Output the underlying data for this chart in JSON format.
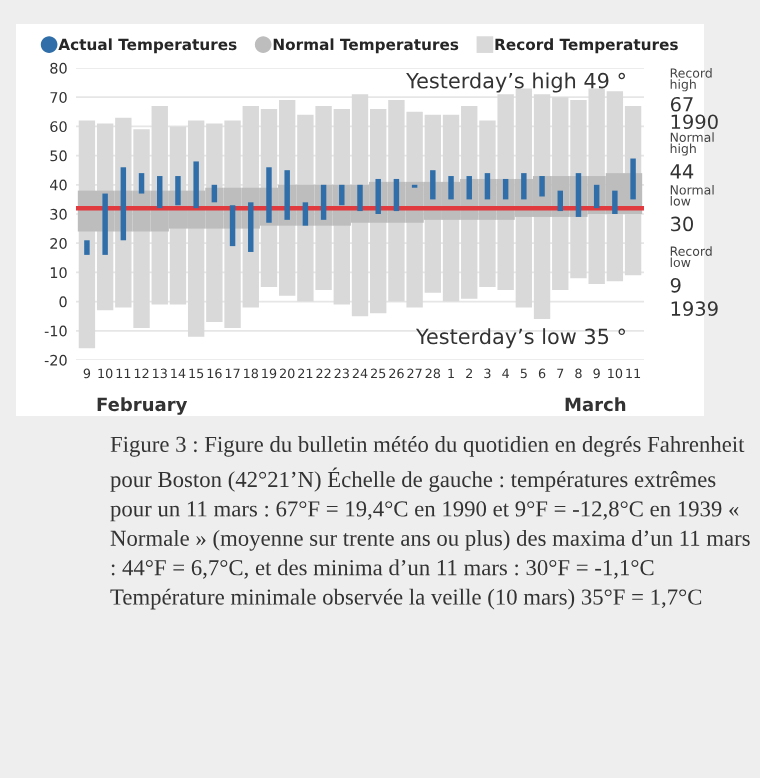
{
  "chart_data": {
    "type": "bar",
    "categories": [
      "9",
      "10",
      "11",
      "12",
      "13",
      "14",
      "15",
      "16",
      "17",
      "18",
      "19",
      "20",
      "21",
      "22",
      "23",
      "24",
      "25",
      "26",
      "27",
      "28",
      "1",
      "2",
      "3",
      "4",
      "5",
      "6",
      "7",
      "8",
      "9",
      "10",
      "11"
    ],
    "series": [
      {
        "name": "Record Temperatures",
        "color": "#d9d9d9",
        "base": [
          -16,
          -3,
          -2,
          -9,
          -1,
          -1,
          -12,
          -7,
          -9,
          -2,
          5,
          2,
          0,
          4,
          -1,
          -5,
          -4,
          0,
          -2,
          3,
          0,
          1,
          5,
          4,
          -2,
          -6,
          4,
          8,
          6,
          7,
          9
        ],
        "values": [
          78,
          64,
          65,
          68,
          68,
          61,
          74,
          68,
          71,
          69,
          61,
          67,
          64,
          63,
          67,
          76,
          70,
          69,
          67,
          61,
          64,
          66,
          57,
          67,
          75,
          77,
          66,
          61,
          67,
          65,
          58
        ]
      },
      {
        "name": "Normal Temperatures",
        "color": "#bdbdbd",
        "base": [
          24,
          24,
          24,
          24,
          24,
          25,
          25,
          25,
          25,
          25,
          26,
          26,
          26,
          26,
          26,
          27,
          27,
          27,
          27,
          28,
          28,
          28,
          28,
          28,
          29,
          29,
          29,
          29,
          30,
          30,
          30
        ],
        "values": [
          14,
          14,
          14,
          14,
          14,
          13,
          13,
          14,
          14,
          14,
          13,
          14,
          14,
          14,
          14,
          13,
          14,
          14,
          14,
          13,
          13,
          14,
          14,
          14,
          13,
          14,
          14,
          14,
          13,
          14,
          14
        ]
      },
      {
        "name": "Actual Temperatures",
        "color": "#2f6ea8",
        "base": [
          16,
          16,
          21,
          37,
          32,
          33,
          32,
          34,
          19,
          17,
          27,
          28,
          26,
          28,
          33,
          31,
          30,
          31,
          39,
          35,
          35,
          35,
          35,
          35,
          35,
          36,
          31,
          29,
          32,
          30,
          35
        ],
        "values": [
          5,
          21,
          25,
          7,
          11,
          10,
          16,
          6,
          14,
          17,
          19,
          17,
          8,
          12,
          7,
          9,
          12,
          11,
          1,
          10,
          8,
          8,
          9,
          7,
          9,
          7,
          7,
          15,
          8,
          8,
          14
        ]
      }
    ],
    "ylim": [
      -20,
      80
    ],
    "yticks": [
      -20,
      -10,
      0,
      10,
      20,
      30,
      40,
      50,
      60,
      70,
      80
    ],
    "grid": "y",
    "legend": "top",
    "ref_lines": [
      {
        "axis": "y",
        "value": 32,
        "color": "#e0393e"
      }
    ],
    "annotations": [
      "Yesterday’s high 49 °",
      "Yesterday’s low 35 °",
      "Record\nhigh",
      "67",
      "1990",
      "Normal\nhigh",
      "44",
      "Normal\nlow",
      "30",
      "Record\nlow",
      "9",
      "1939",
      "February",
      "March",
      "Figure 3 : Figure du bulletin météo du quotidien en degrés Fahrenheit pour Boston (42°21’N) Échelle de gauche : températures extrêmes pour un 11 mars : 67°F = 19,4°C en 1990 et 9°F = -12,8°C en 1939 « Normale » (moyenne sur trente ans ou plus) des maxima d’un 11 mars : 44°F = 6,7°C, et des minima d’un 11 mars : 30°F = -1,1°C Température minimale observée la veille (10 mars) 35°F = 1,7°C"
    ]
  }
}
